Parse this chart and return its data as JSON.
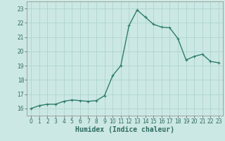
{
  "x": [
    0,
    1,
    2,
    3,
    4,
    5,
    6,
    7,
    8,
    9,
    10,
    11,
    12,
    13,
    14,
    15,
    16,
    17,
    18,
    19,
    20,
    21,
    22,
    23
  ],
  "y": [
    16.0,
    16.2,
    16.3,
    16.3,
    16.5,
    16.6,
    16.55,
    16.5,
    16.55,
    16.9,
    18.3,
    19.0,
    21.8,
    22.9,
    22.4,
    21.9,
    21.7,
    21.65,
    20.9,
    19.4,
    19.65,
    19.8,
    19.3,
    19.2
  ],
  "line_color": "#2e7d6e",
  "marker": "+",
  "marker_size": 3,
  "bg_color": "#cce8e4",
  "grid_color": "#aed4cf",
  "xlabel": "Humidex (Indice chaleur)",
  "xlim": [
    -0.5,
    23.5
  ],
  "ylim": [
    15.5,
    23.5
  ],
  "yticks": [
    16,
    17,
    18,
    19,
    20,
    21,
    22,
    23
  ],
  "xticks": [
    0,
    1,
    2,
    3,
    4,
    5,
    6,
    7,
    8,
    9,
    10,
    11,
    12,
    13,
    14,
    15,
    16,
    17,
    18,
    19,
    20,
    21,
    22,
    23
  ],
  "tick_fontsize": 5.5,
  "xlabel_fontsize": 7,
  "line_width": 1.0
}
